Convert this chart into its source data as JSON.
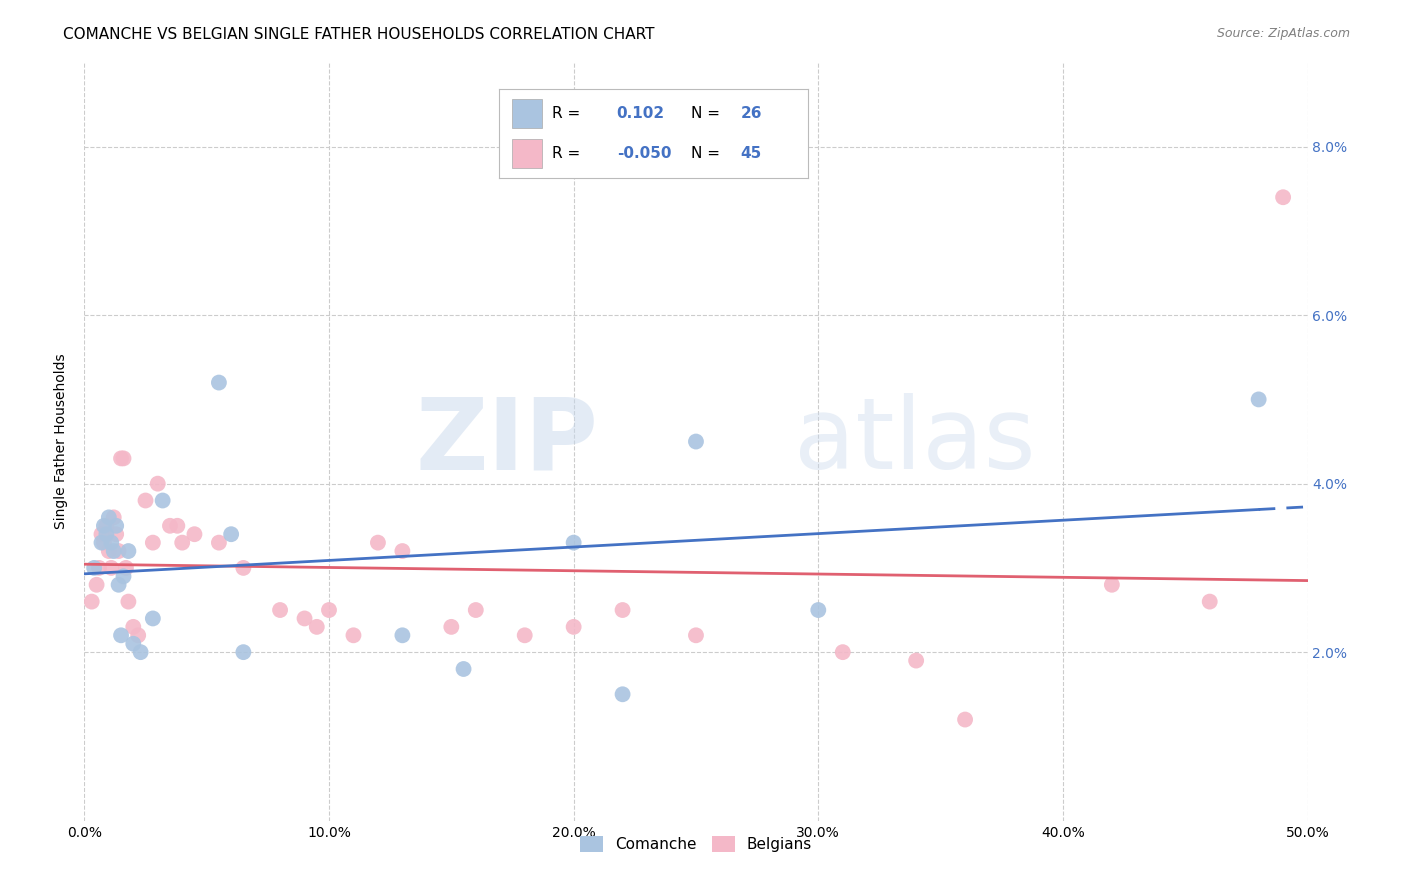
{
  "title": "COMANCHE VS BELGIAN SINGLE FATHER HOUSEHOLDS CORRELATION CHART",
  "source": "Source: ZipAtlas.com",
  "ylabel": "Single Father Households",
  "xlim": [
    0.0,
    0.5
  ],
  "ylim": [
    0.0,
    0.09
  ],
  "xticks": [
    0.0,
    0.1,
    0.2,
    0.3,
    0.4,
    0.5
  ],
  "yticks": [
    0.0,
    0.02,
    0.04,
    0.06,
    0.08
  ],
  "ytick_labels": [
    "",
    "2.0%",
    "4.0%",
    "6.0%",
    "8.0%"
  ],
  "xtick_labels": [
    "0.0%",
    "10.0%",
    "20.0%",
    "30.0%",
    "40.0%",
    "50.0%"
  ],
  "background_color": "#ffffff",
  "grid_color": "#cccccc",
  "comanche_color": "#aac4e0",
  "belgian_color": "#f4b8c8",
  "comanche_line_color": "#4472c4",
  "belgian_line_color": "#e06070",
  "tick_color": "#4472c4",
  "comanche_R": 0.102,
  "comanche_N": 26,
  "belgian_R": -0.05,
  "belgian_N": 45,
  "comanche_x": [
    0.004,
    0.007,
    0.008,
    0.009,
    0.01,
    0.011,
    0.012,
    0.013,
    0.014,
    0.015,
    0.016,
    0.018,
    0.02,
    0.023,
    0.028,
    0.032,
    0.055,
    0.06,
    0.065,
    0.13,
    0.155,
    0.2,
    0.22,
    0.25,
    0.3,
    0.48
  ],
  "comanche_y": [
    0.03,
    0.033,
    0.035,
    0.034,
    0.036,
    0.033,
    0.032,
    0.035,
    0.028,
    0.022,
    0.029,
    0.032,
    0.021,
    0.02,
    0.024,
    0.038,
    0.052,
    0.034,
    0.02,
    0.022,
    0.018,
    0.033,
    0.015,
    0.045,
    0.025,
    0.05
  ],
  "belgian_x": [
    0.003,
    0.005,
    0.006,
    0.007,
    0.008,
    0.009,
    0.01,
    0.011,
    0.012,
    0.013,
    0.014,
    0.015,
    0.016,
    0.017,
    0.018,
    0.02,
    0.022,
    0.025,
    0.028,
    0.03,
    0.035,
    0.038,
    0.04,
    0.045,
    0.055,
    0.065,
    0.08,
    0.09,
    0.095,
    0.1,
    0.11,
    0.12,
    0.13,
    0.15,
    0.16,
    0.18,
    0.2,
    0.22,
    0.25,
    0.31,
    0.34,
    0.36,
    0.42,
    0.46,
    0.49
  ],
  "belgian_y": [
    0.026,
    0.028,
    0.03,
    0.034,
    0.033,
    0.035,
    0.032,
    0.03,
    0.036,
    0.034,
    0.032,
    0.043,
    0.043,
    0.03,
    0.026,
    0.023,
    0.022,
    0.038,
    0.033,
    0.04,
    0.035,
    0.035,
    0.033,
    0.034,
    0.033,
    0.03,
    0.025,
    0.024,
    0.023,
    0.025,
    0.022,
    0.033,
    0.032,
    0.023,
    0.025,
    0.022,
    0.023,
    0.025,
    0.022,
    0.02,
    0.019,
    0.012,
    0.028,
    0.026,
    0.074
  ],
  "watermark_zip": "ZIP",
  "watermark_atlas": "atlas",
  "title_fontsize": 11,
  "axis_label_fontsize": 10,
  "tick_fontsize": 10,
  "legend_fontsize": 11
}
